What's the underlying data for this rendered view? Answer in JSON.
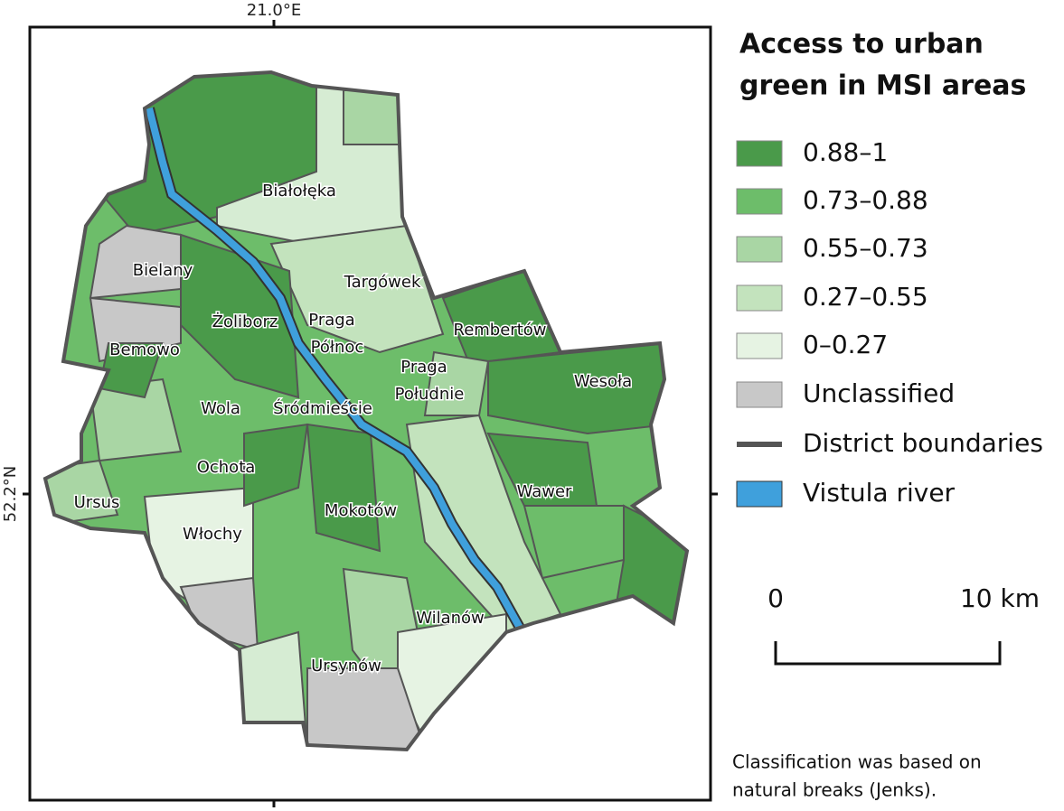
{
  "map": {
    "axis": {
      "top": "21.0°E",
      "left": "52.2°N"
    },
    "labels": [
      [
        "Białołęka"
      ],
      [
        "Bielany"
      ],
      [
        "Targówek"
      ],
      [
        "Żoliborz"
      ],
      [
        "Praga",
        "Północ"
      ],
      [
        "Rembertów"
      ],
      [
        "Bemowo"
      ],
      [
        "Praga",
        "Południe"
      ],
      [
        "Wesoła"
      ],
      [
        "Wola"
      ],
      [
        "Śródmieście"
      ],
      [
        "Ochota"
      ],
      [
        "Wawer"
      ],
      [
        "Ursus"
      ],
      [
        "Mokotów"
      ],
      [
        "Włochy"
      ],
      [
        "Wilanów"
      ],
      [
        "Ursynów"
      ]
    ]
  },
  "legend": {
    "title": [
      "Access to urban",
      "green in MSI areas"
    ],
    "items": [
      "0.88–1",
      "0.73–0.88",
      "0.55–0.73",
      "0.27–0.55",
      "0–0.27",
      "Unclassified",
      "District boundaries",
      "Vistula river"
    ]
  },
  "scale": {
    "start": "0",
    "end": "10 km"
  },
  "note": [
    "Classification was based on",
    "natural breaks (Jenks)."
  ]
}
